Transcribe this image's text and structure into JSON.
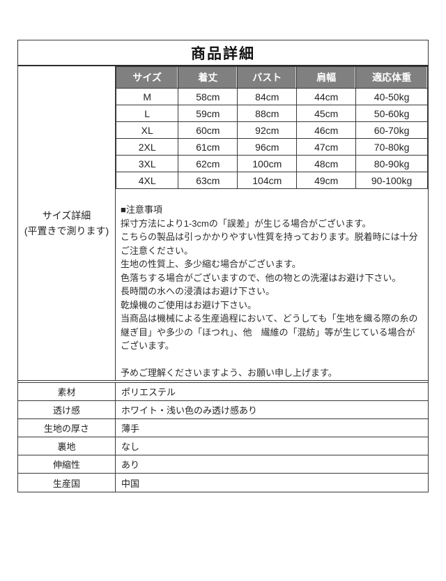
{
  "page": {
    "title": "商品詳細"
  },
  "size_section": {
    "label_line1": "サイズ詳細",
    "label_line2": "(平置きで測ります)",
    "table": {
      "headers": [
        "サイズ",
        "着丈",
        "バスト",
        "肩幅",
        "適応体重"
      ],
      "rows": [
        [
          "M",
          "58cm",
          "84cm",
          "44cm",
          "40-50kg"
        ],
        [
          "L",
          "59cm",
          "88cm",
          "45cm",
          "50-60kg"
        ],
        [
          "XL",
          "60cm",
          "92cm",
          "46cm",
          "60-70kg"
        ],
        [
          "2XL",
          "61cm",
          "96cm",
          "47cm",
          "70-80kg"
        ],
        [
          "3XL",
          "62cm",
          "100cm",
          "48cm",
          "80-90kg"
        ],
        [
          "4XL",
          "63cm",
          "104cm",
          "49cm",
          "90-100kg"
        ]
      ]
    },
    "notes": {
      "heading": "■注意事項",
      "body": "採寸方法により1-3cmの「誤差」が生じる場合がございます。\nこちらの製品は引っかかりやすい性質を持っております。脱着時には十分ご注意ください。\n生地の性質上、多少縮む場合がございます。\n色落ちする場合がございますので、他の物との洗濯はお避け下さい。\n長時間の水への浸漬はお避け下さい。\n乾燥機のご使用はお避け下さい。\n当商品は機械による生産過程において、どうしても「生地を織る際の糸の継ぎ目」や多少の「ほつれ」、他　繊維の「混紡」等が生じている場合がございます。\n\n予めご理解くださいますよう、お願い申し上げます。"
    }
  },
  "attributes": [
    {
      "label": "素材",
      "value": "ポリエステル"
    },
    {
      "label": "透け感",
      "value": "ホワイト・浅い色のみ透け感あり"
    },
    {
      "label": "生地の厚さ",
      "value": "薄手"
    },
    {
      "label": "裏地",
      "value": "なし"
    },
    {
      "label": "伸縮性",
      "value": "あり"
    },
    {
      "label": "生産国",
      "value": "中国"
    }
  ],
  "colors": {
    "header_bg": "#808080",
    "header_text": "#ffffff",
    "border": "#383838"
  }
}
